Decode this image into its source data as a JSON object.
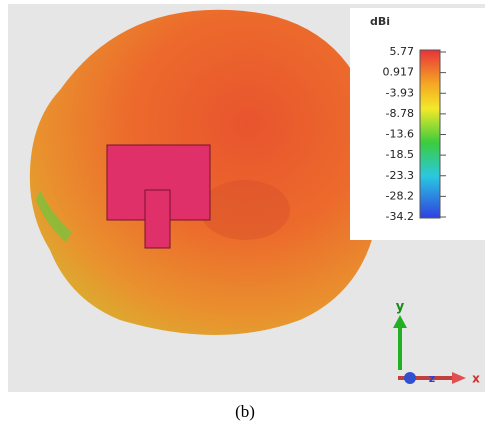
{
  "colorbar": {
    "unit": "dBi",
    "ticks": [
      5.77,
      0.917,
      -3.93,
      -8.78,
      -13.6,
      -18.5,
      -23.3,
      -28.2,
      -34.2
    ]
  },
  "axes": {
    "y": "y",
    "z": "z",
    "x": "x"
  },
  "caption": "(b)"
}
